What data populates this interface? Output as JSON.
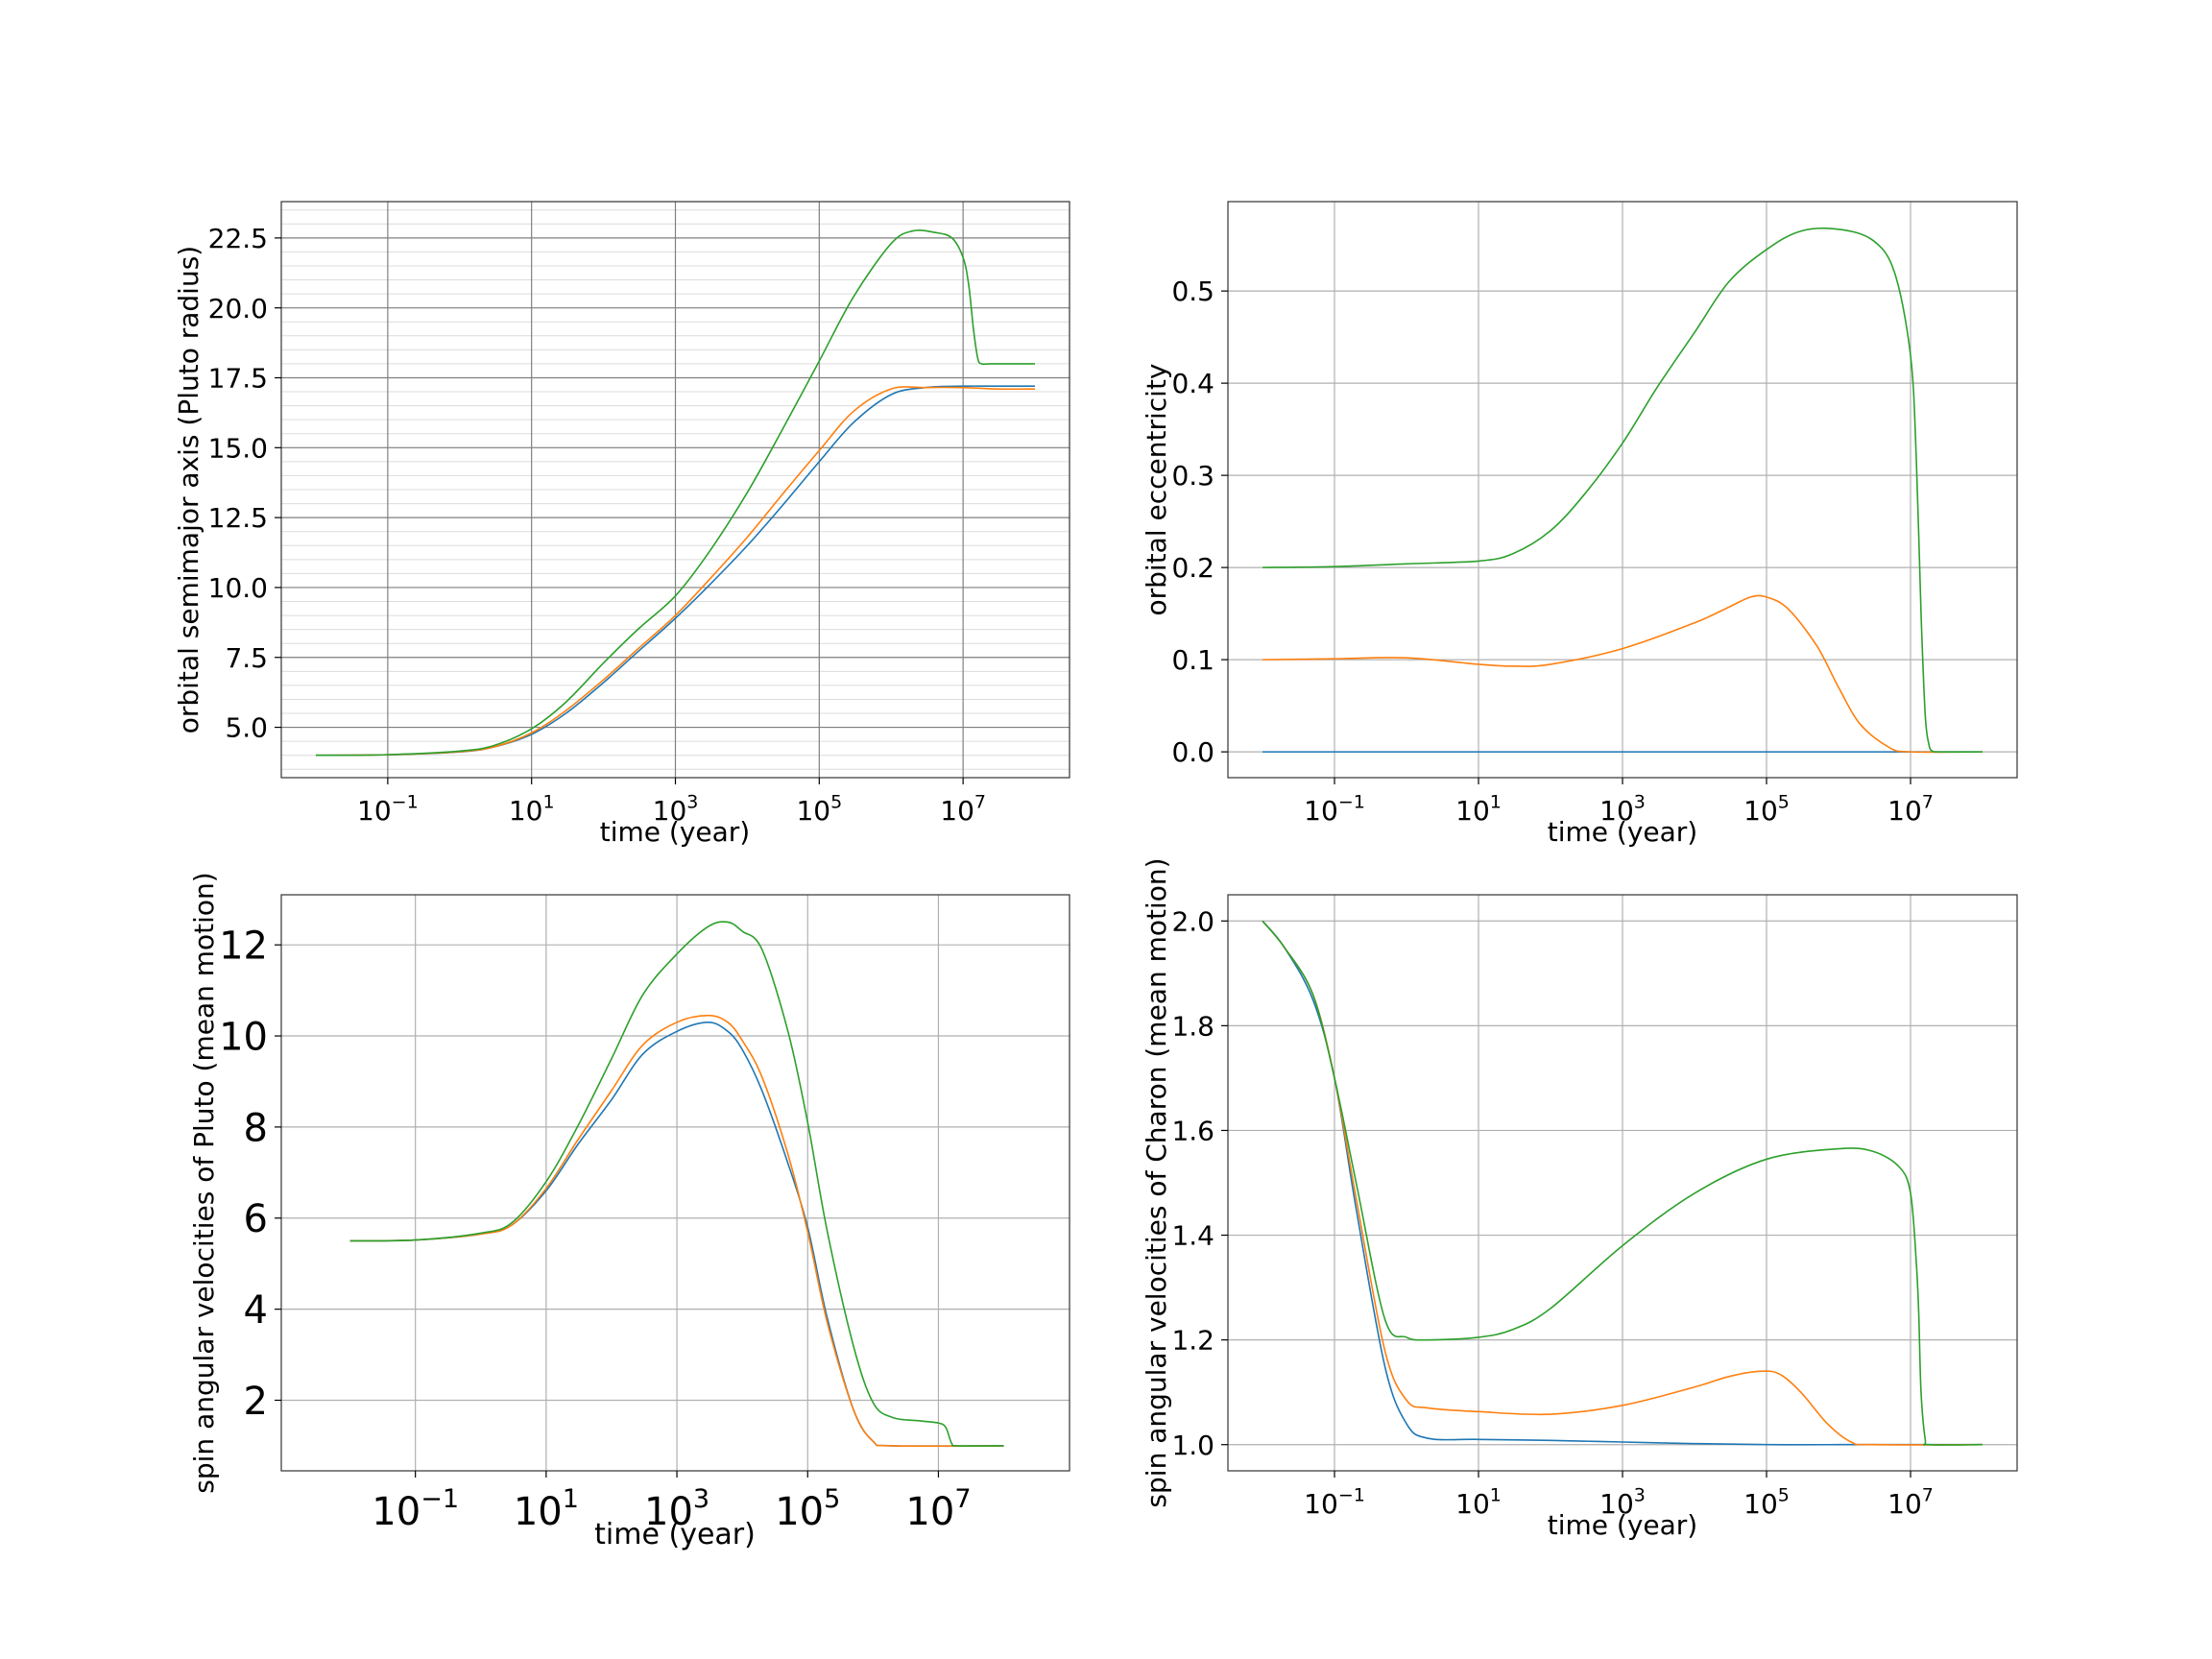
{
  "colors": {
    "blue": "#1f77b4",
    "orange": "#ff7f0e",
    "green": "#2ca02c"
  },
  "chart_data": [
    {
      "id": "semimajor",
      "type": "line",
      "xscale": "log",
      "xlim": [
        0.01,
        100000000
      ],
      "ylim": [
        3.2,
        23.8
      ],
      "xticks": [
        0.1,
        10,
        1000,
        100000,
        10000000
      ],
      "xtick_labels": [
        "10−1",
        "101",
        "103",
        "105",
        "107"
      ],
      "yticks": [
        5.0,
        7.5,
        10.0,
        12.5,
        15.0,
        17.5,
        20.0,
        22.5
      ],
      "ytick_labels": [
        "5.0",
        "7.5",
        "10.0",
        "12.5",
        "15.0",
        "17.5",
        "20.0",
        "22.5"
      ],
      "minor_ygrid": true,
      "xlabel": "time  (year)",
      "ylabel": "orbital semimajor axis (Pluto radius)",
      "series": [
        {
          "color": "blue",
          "x": [
            0.01,
            0.1,
            1,
            3,
            10,
            30,
            100,
            300,
            1000,
            3000,
            10000,
            30000,
            100000,
            300000,
            1000000,
            3000000,
            10000000,
            30000000,
            100000000
          ],
          "y": [
            4.0,
            4.02,
            4.12,
            4.3,
            4.75,
            5.5,
            6.6,
            7.7,
            8.9,
            10.1,
            11.5,
            12.9,
            14.5,
            15.9,
            16.9,
            17.15,
            17.2,
            17.2,
            17.2
          ]
        },
        {
          "color": "orange",
          "x": [
            0.01,
            0.1,
            1,
            3,
            10,
            30,
            100,
            300,
            1000,
            3000,
            10000,
            30000,
            100000,
            300000,
            1000000,
            3000000,
            10000000,
            30000000,
            100000000
          ],
          "y": [
            4.0,
            4.02,
            4.13,
            4.3,
            4.8,
            5.6,
            6.7,
            7.8,
            9.0,
            10.3,
            11.8,
            13.3,
            14.9,
            16.3,
            17.1,
            17.15,
            17.15,
            17.1,
            17.1
          ]
        },
        {
          "color": "green",
          "x": [
            0.01,
            0.1,
            1,
            3,
            10,
            30,
            100,
            300,
            1000,
            3000,
            10000,
            30000,
            100000,
            300000,
            1000000,
            2000000,
            4000000,
            7000000,
            10000000,
            12000000,
            14000000,
            16000000,
            18000000,
            25000000,
            100000000
          ],
          "y": [
            4.0,
            4.02,
            4.15,
            4.35,
            4.95,
            5.9,
            7.3,
            8.5,
            9.7,
            11.3,
            13.4,
            15.6,
            18.1,
            20.4,
            22.3,
            22.75,
            22.7,
            22.5,
            21.8,
            20.8,
            19.2,
            18.2,
            18.0,
            18.0,
            18.0
          ]
        }
      ]
    },
    {
      "id": "eccentricity",
      "type": "line",
      "xscale": "log",
      "xlim": [
        0.01,
        100000000
      ],
      "ylim": [
        -0.028,
        0.597
      ],
      "xticks": [
        0.1,
        10,
        1000,
        100000,
        10000000
      ],
      "xtick_labels": [
        "10−1",
        "101",
        "103",
        "105",
        "107"
      ],
      "yticks": [
        0.0,
        0.1,
        0.2,
        0.3,
        0.4,
        0.5
      ],
      "ytick_labels": [
        "0.0",
        "0.1",
        "0.2",
        "0.3",
        "0.4",
        "0.5"
      ],
      "minor_ygrid": false,
      "xlabel": "time  (year)",
      "ylabel": "orbital eccentricity",
      "series": [
        {
          "color": "blue",
          "x": [
            0.01,
            100000000
          ],
          "y": [
            0.0,
            0.0
          ]
        },
        {
          "color": "orange",
          "x": [
            0.01,
            0.1,
            1,
            10,
            30,
            100,
            1000,
            10000,
            30000,
            60000,
            100000,
            200000,
            500000,
            1000000,
            2000000,
            5000000,
            10000000,
            100000000
          ],
          "y": [
            0.1,
            0.101,
            0.102,
            0.095,
            0.093,
            0.095,
            0.112,
            0.14,
            0.157,
            0.168,
            0.168,
            0.155,
            0.115,
            0.07,
            0.03,
            0.005,
            0.0,
            0.0
          ]
        },
        {
          "color": "green",
          "x": [
            0.01,
            0.1,
            1,
            10,
            30,
            100,
            300,
            1000,
            3000,
            10000,
            30000,
            100000,
            300000,
            1000000,
            3000000,
            6000000,
            10000000,
            12000000,
            14000000,
            16000000,
            18000000,
            20000000,
            25000000,
            100000000
          ],
          "y": [
            0.2,
            0.201,
            0.204,
            0.207,
            0.215,
            0.24,
            0.28,
            0.335,
            0.395,
            0.455,
            0.51,
            0.545,
            0.565,
            0.567,
            0.555,
            0.52,
            0.43,
            0.32,
            0.15,
            0.04,
            0.008,
            0.001,
            0.0,
            0.0
          ]
        }
      ]
    },
    {
      "id": "pluto-spin",
      "type": "line",
      "xscale": "log",
      "xlim": [
        0.003,
        300000000
      ],
      "ylim": [
        0.45,
        13.1
      ],
      "xticks": [
        0.1,
        10,
        1000,
        100000,
        10000000
      ],
      "xtick_labels": [
        "10−1",
        "101",
        "103",
        "105",
        "107"
      ],
      "yticks": [
        2,
        4,
        6,
        8,
        10,
        12
      ],
      "ytick_labels": [
        "2",
        "4",
        "6",
        "8",
        "10",
        "12"
      ],
      "minor_ygrid": false,
      "xlabel": "time (year)",
      "ylabel": "spin angular velocities of Pluto (mean motion)",
      "series": [
        {
          "color": "blue",
          "x": [
            0.01,
            0.1,
            1,
            3,
            10,
            30,
            100,
            300,
            1000,
            3000,
            6000,
            10000,
            20000,
            50000,
            100000,
            200000,
            500000,
            1000000,
            2000000,
            100000000
          ],
          "y": [
            5.5,
            5.52,
            5.65,
            5.85,
            6.6,
            7.6,
            8.6,
            9.6,
            10.1,
            10.3,
            10.1,
            9.7,
            8.8,
            7.2,
            5.8,
            3.8,
            1.8,
            1.1,
            1.0,
            1.0
          ]
        },
        {
          "color": "orange",
          "x": [
            0.01,
            0.1,
            1,
            3,
            10,
            30,
            100,
            300,
            1000,
            3000,
            6000,
            10000,
            20000,
            50000,
            100000,
            200000,
            500000,
            1000000,
            2000000,
            100000000
          ],
          "y": [
            5.5,
            5.52,
            5.65,
            5.85,
            6.65,
            7.7,
            8.8,
            9.8,
            10.3,
            10.45,
            10.3,
            9.9,
            9.1,
            7.4,
            5.7,
            3.7,
            1.8,
            1.1,
            1.0,
            1.0
          ]
        },
        {
          "color": "green",
          "x": [
            0.01,
            0.1,
            1,
            3,
            10,
            30,
            100,
            300,
            1000,
            3000,
            6000,
            10000,
            20000,
            50000,
            100000,
            200000,
            500000,
            1000000,
            2000000,
            5000000,
            10000000,
            13000000,
            16000000,
            20000000,
            100000000
          ],
          "y": [
            5.5,
            5.52,
            5.67,
            5.9,
            6.8,
            8.0,
            9.5,
            10.9,
            11.8,
            12.4,
            12.5,
            12.3,
            11.9,
            10.1,
            8.1,
            5.7,
            3.2,
            1.95,
            1.62,
            1.55,
            1.5,
            1.4,
            1.05,
            1.0,
            1.0
          ]
        }
      ]
    },
    {
      "id": "charon-spin",
      "type": "line",
      "xscale": "log",
      "xlim": [
        0.01,
        100000000
      ],
      "ylim": [
        0.95,
        2.05
      ],
      "xticks": [
        0.1,
        10,
        1000,
        100000,
        10000000
      ],
      "xtick_labels": [
        "10−1",
        "101",
        "103",
        "105",
        "107"
      ],
      "yticks": [
        1.0,
        1.2,
        1.4,
        1.6,
        1.8,
        2.0
      ],
      "ytick_labels": [
        "1.0",
        "1.2",
        "1.4",
        "1.6",
        "1.8",
        "2.0"
      ],
      "minor_ygrid": false,
      "xlabel": "time  (year)",
      "ylabel": "spin angular velocities of Charon (mean motion)",
      "series": [
        {
          "color": "blue",
          "x": [
            0.01,
            0.02,
            0.05,
            0.1,
            0.2,
            0.5,
            1,
            2,
            10,
            100,
            1000,
            10000,
            100000,
            1000000,
            100000000
          ],
          "y": [
            2.0,
            1.95,
            1.85,
            1.7,
            1.45,
            1.15,
            1.04,
            1.012,
            1.01,
            1.008,
            1.005,
            1.002,
            1.0,
            1.0,
            1.0
          ]
        },
        {
          "color": "orange",
          "x": [
            0.01,
            0.02,
            0.05,
            0.1,
            0.2,
            0.5,
            1,
            2,
            10,
            100,
            1000,
            10000,
            30000,
            80000,
            150000,
            300000,
            700000,
            1500000,
            3000000,
            100000000
          ],
          "y": [
            2.0,
            1.95,
            1.86,
            1.7,
            1.47,
            1.18,
            1.085,
            1.07,
            1.063,
            1.058,
            1.075,
            1.11,
            1.13,
            1.14,
            1.135,
            1.1,
            1.04,
            1.005,
            1.0,
            1.0
          ]
        },
        {
          "color": "green",
          "x": [
            0.01,
            0.02,
            0.05,
            0.1,
            0.2,
            0.5,
            1,
            2,
            10,
            30,
            100,
            1000,
            10000,
            100000,
            1000000,
            3000000,
            7000000,
            10000000,
            12000000,
            13000000,
            14000000,
            16000000,
            18000000,
            100000000
          ],
          "y": [
            2.0,
            1.95,
            1.86,
            1.7,
            1.5,
            1.24,
            1.205,
            1.2,
            1.205,
            1.22,
            1.26,
            1.38,
            1.48,
            1.545,
            1.565,
            1.56,
            1.53,
            1.48,
            1.35,
            1.25,
            1.1,
            1.01,
            1.0,
            1.0
          ]
        }
      ]
    }
  ]
}
